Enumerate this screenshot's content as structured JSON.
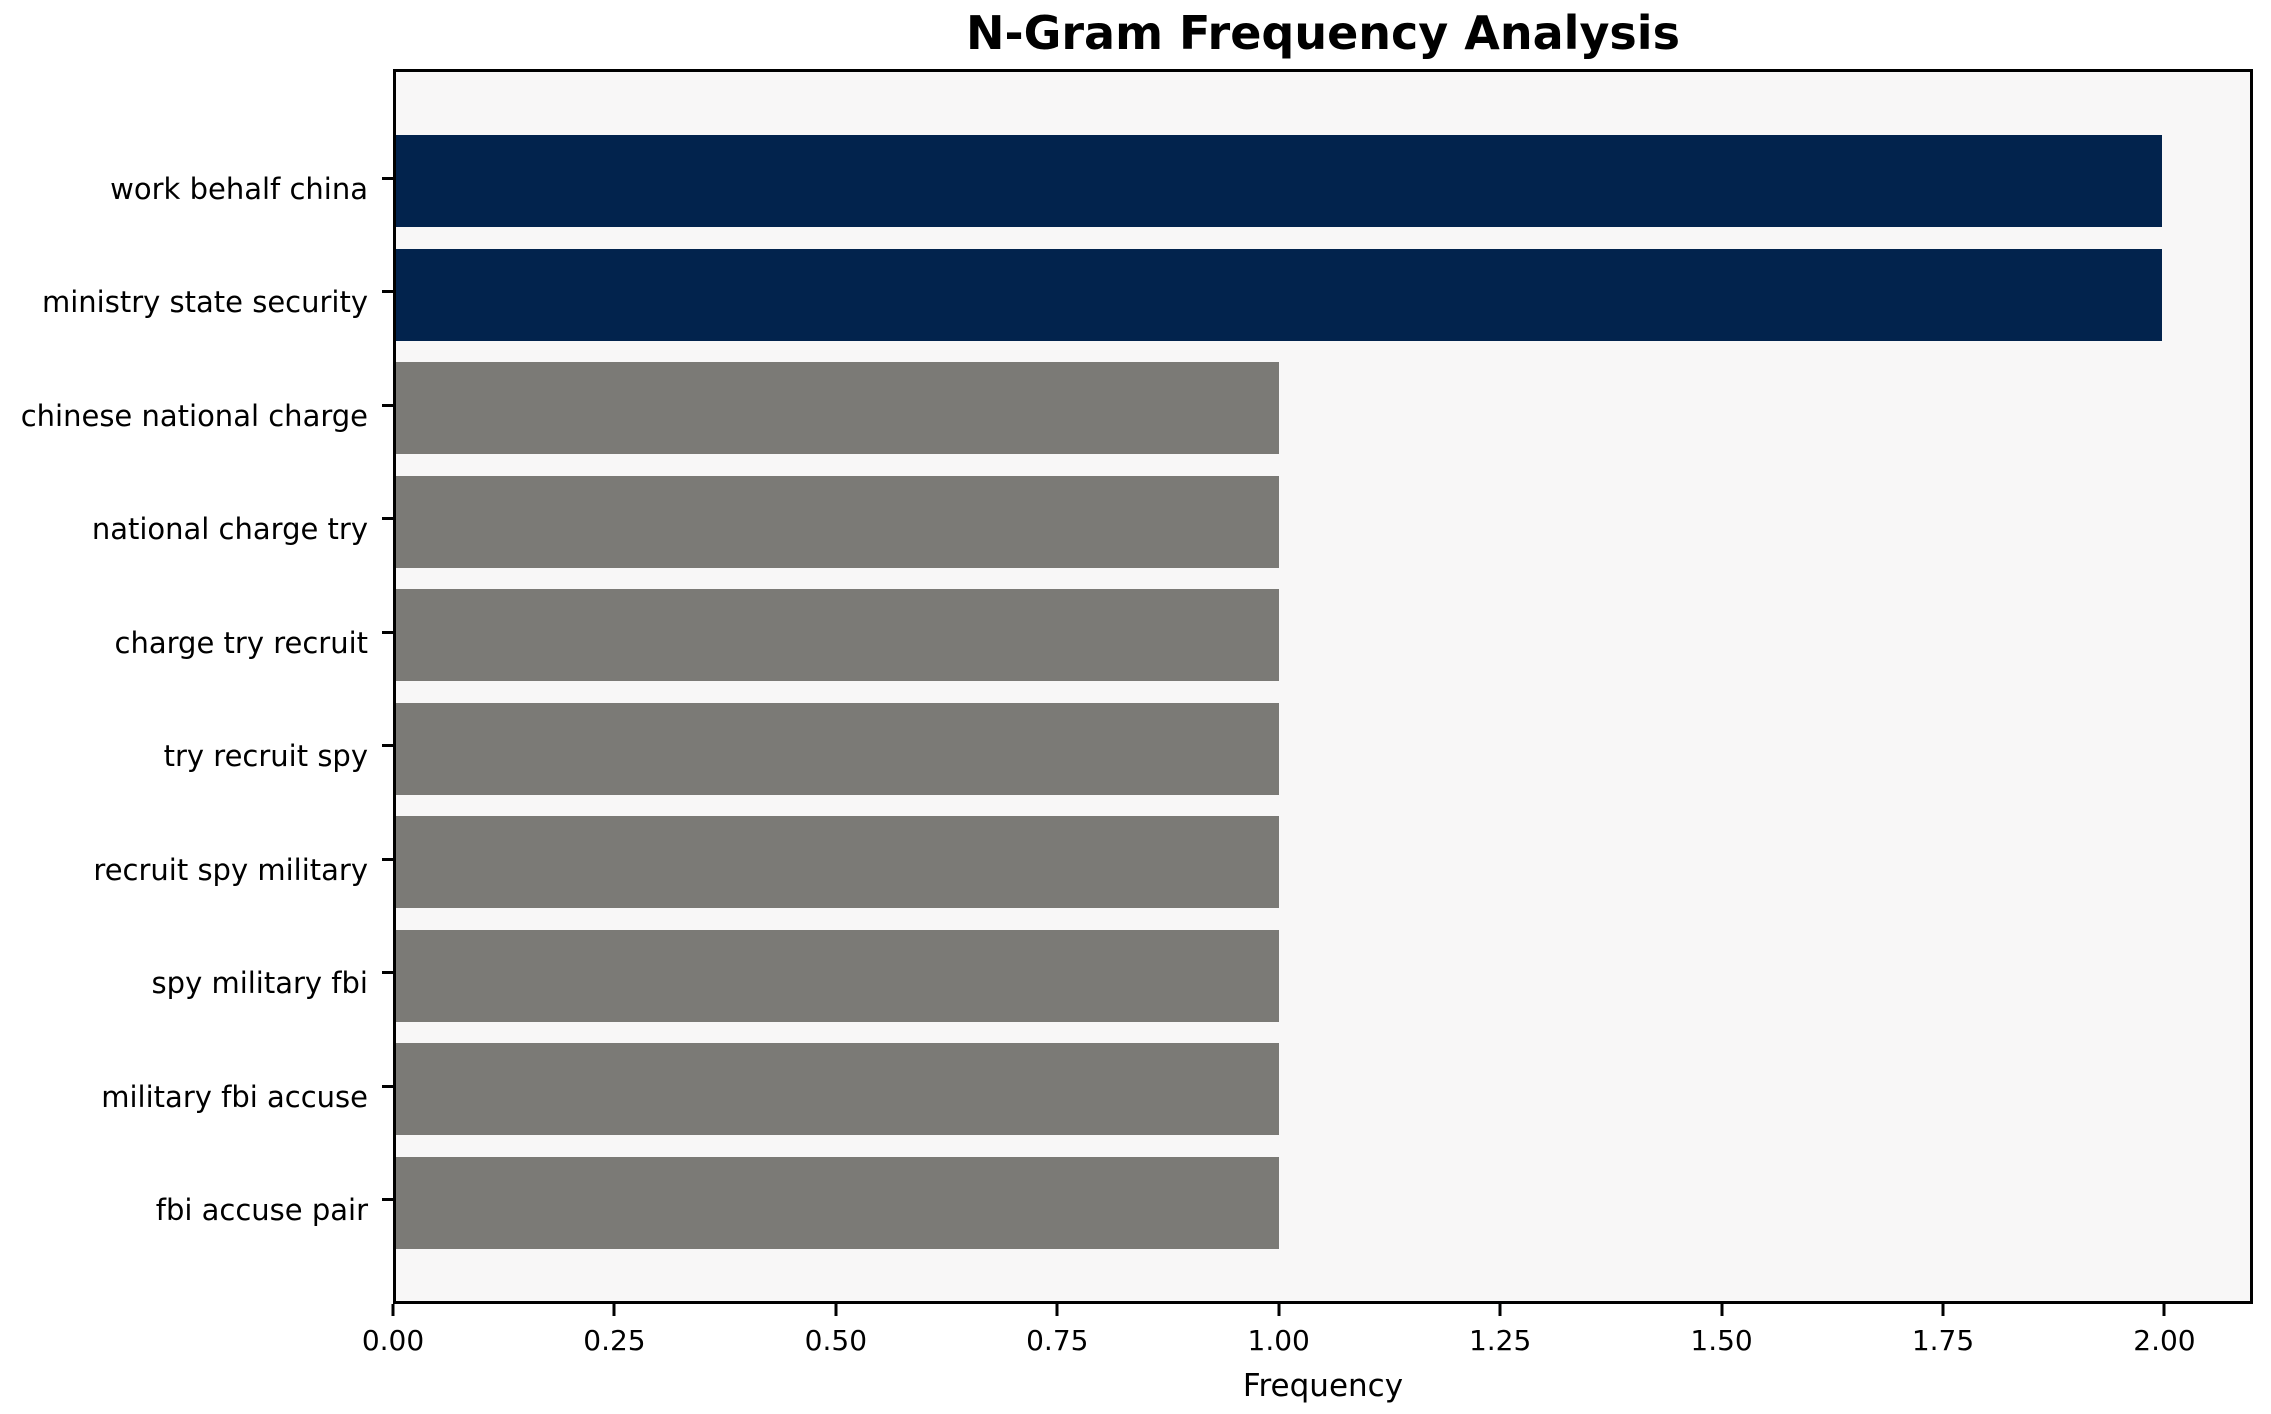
{
  "chart_data": {
    "type": "bar",
    "orientation": "horizontal",
    "title": "N-Gram Frequency Analysis",
    "xlabel": "Frequency",
    "ylabel": "",
    "categories": [
      "work behalf china",
      "ministry state security",
      "chinese national charge",
      "national charge try",
      "charge try recruit",
      "try recruit spy",
      "recruit spy military",
      "spy military fbi",
      "military fbi accuse",
      "fbi accuse pair"
    ],
    "values": [
      2.0,
      2.0,
      1.0,
      1.0,
      1.0,
      1.0,
      1.0,
      1.0,
      1.0,
      1.0
    ],
    "bar_colors": [
      "#02234D",
      "#02234D",
      "#7B7A76",
      "#7B7A76",
      "#7B7A76",
      "#7B7A76",
      "#7B7A76",
      "#7B7A76",
      "#7B7A76",
      "#7B7A76"
    ],
    "xlim": [
      0,
      2.1
    ],
    "xticks": [
      0,
      0.25,
      0.5,
      0.75,
      1.0,
      1.25,
      1.5,
      1.75,
      2.0
    ],
    "xtick_labels": [
      "0.00",
      "0.25",
      "0.50",
      "0.75",
      "1.00",
      "1.25",
      "1.50",
      "1.75",
      "2.00"
    ],
    "grid": false,
    "legend": null,
    "colors": {
      "highlight": "#02234D",
      "default": "#7B7A76",
      "plot_background": "#F8F7F7",
      "figure_background": "#FFFFFF",
      "spine": "#000000"
    }
  }
}
